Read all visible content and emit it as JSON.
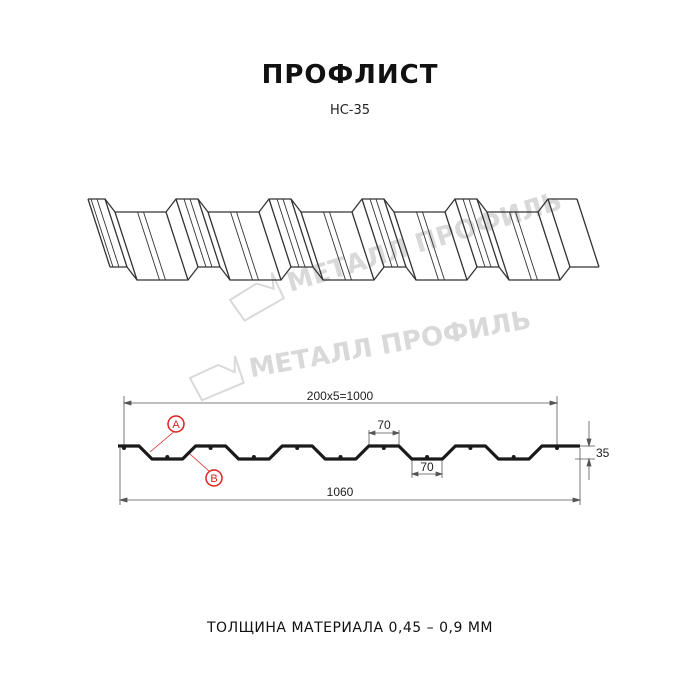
{
  "header": {
    "title": "ПРОФЛИСТ",
    "subtitle": "НС-35"
  },
  "watermark": {
    "text": "МЕТАЛЛ ПРОФИЛЬ",
    "color": "#d9d9d9"
  },
  "section": {
    "dim_pitch": "200x5=1000",
    "dim_top": "70",
    "dim_bottom": "70",
    "dim_height": "35",
    "dim_total": "1060",
    "label_a": "A",
    "label_b": "B",
    "marker_color": "#e02020"
  },
  "footer": {
    "text": "ТОЛЩИНА МАТЕРИАЛА 0,45 – 0,9 ММ"
  }
}
